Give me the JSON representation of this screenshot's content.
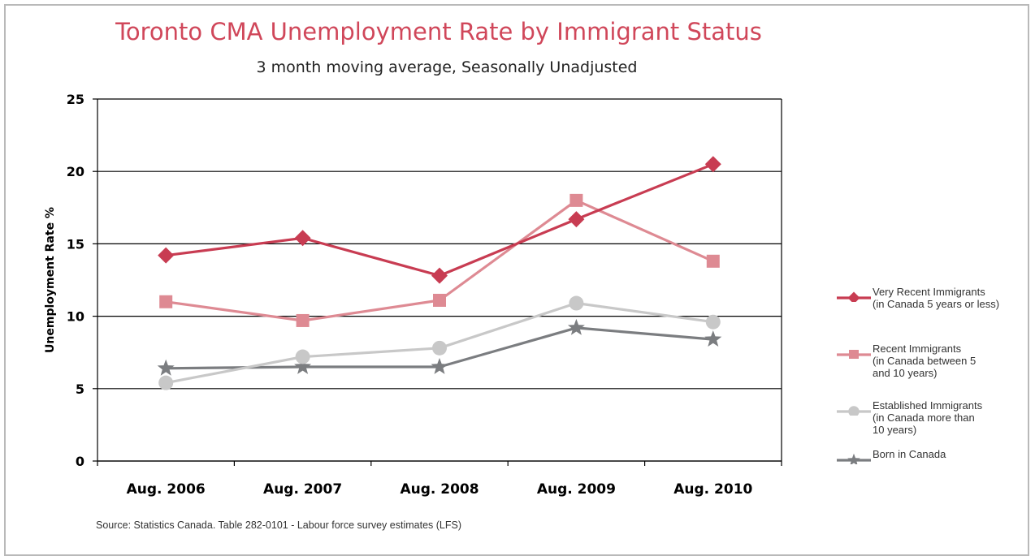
{
  "header": {
    "title": "Toronto CMA Unemployment Rate by Immigrant Status",
    "subtitle": "3 month moving average, Seasonally Unadjusted"
  },
  "footer": {
    "source": "Source: Statistics Canada. Table 282-0101 - Labour force survey estimates (LFS)"
  },
  "chart_data": {
    "type": "line",
    "title": "Toronto CMA Unemployment Rate by Immigrant Status",
    "subtitle": "3 month moving average, Seasonally Unadjusted",
    "xlabel": "",
    "ylabel": "Unemployment Rate %",
    "categories": [
      "Aug. 2006",
      "Aug. 2007",
      "Aug. 2008",
      "Aug. 2009",
      "Aug. 2010"
    ],
    "ylim": [
      0,
      25
    ],
    "yticks": [
      0,
      5,
      10,
      15,
      20,
      25
    ],
    "grid": "horizontal",
    "legend_position": "right",
    "series": [
      {
        "name": "Very Recent Immigrants\n(in Canada  5 years or less)",
        "values": [
          14.2,
          15.4,
          12.8,
          16.7,
          20.5
        ],
        "color": "#c83c52",
        "marker": "diamond"
      },
      {
        "name": "Recent Immigrants\n(in Canada between 5\nand 10 years)",
        "values": [
          11.0,
          9.7,
          11.1,
          18.0,
          13.8
        ],
        "color": "#de8a93",
        "marker": "square"
      },
      {
        "name": "Established Immigrants\n(in Canada more than\n10 years)",
        "values": [
          5.4,
          7.2,
          7.8,
          10.9,
          9.6
        ],
        "color": "#c8c8c8",
        "marker": "circle"
      },
      {
        "name": "Born in Canada",
        "values": [
          6.4,
          6.5,
          6.5,
          9.2,
          8.4
        ],
        "color": "#7b7d80",
        "marker": "star"
      }
    ]
  }
}
